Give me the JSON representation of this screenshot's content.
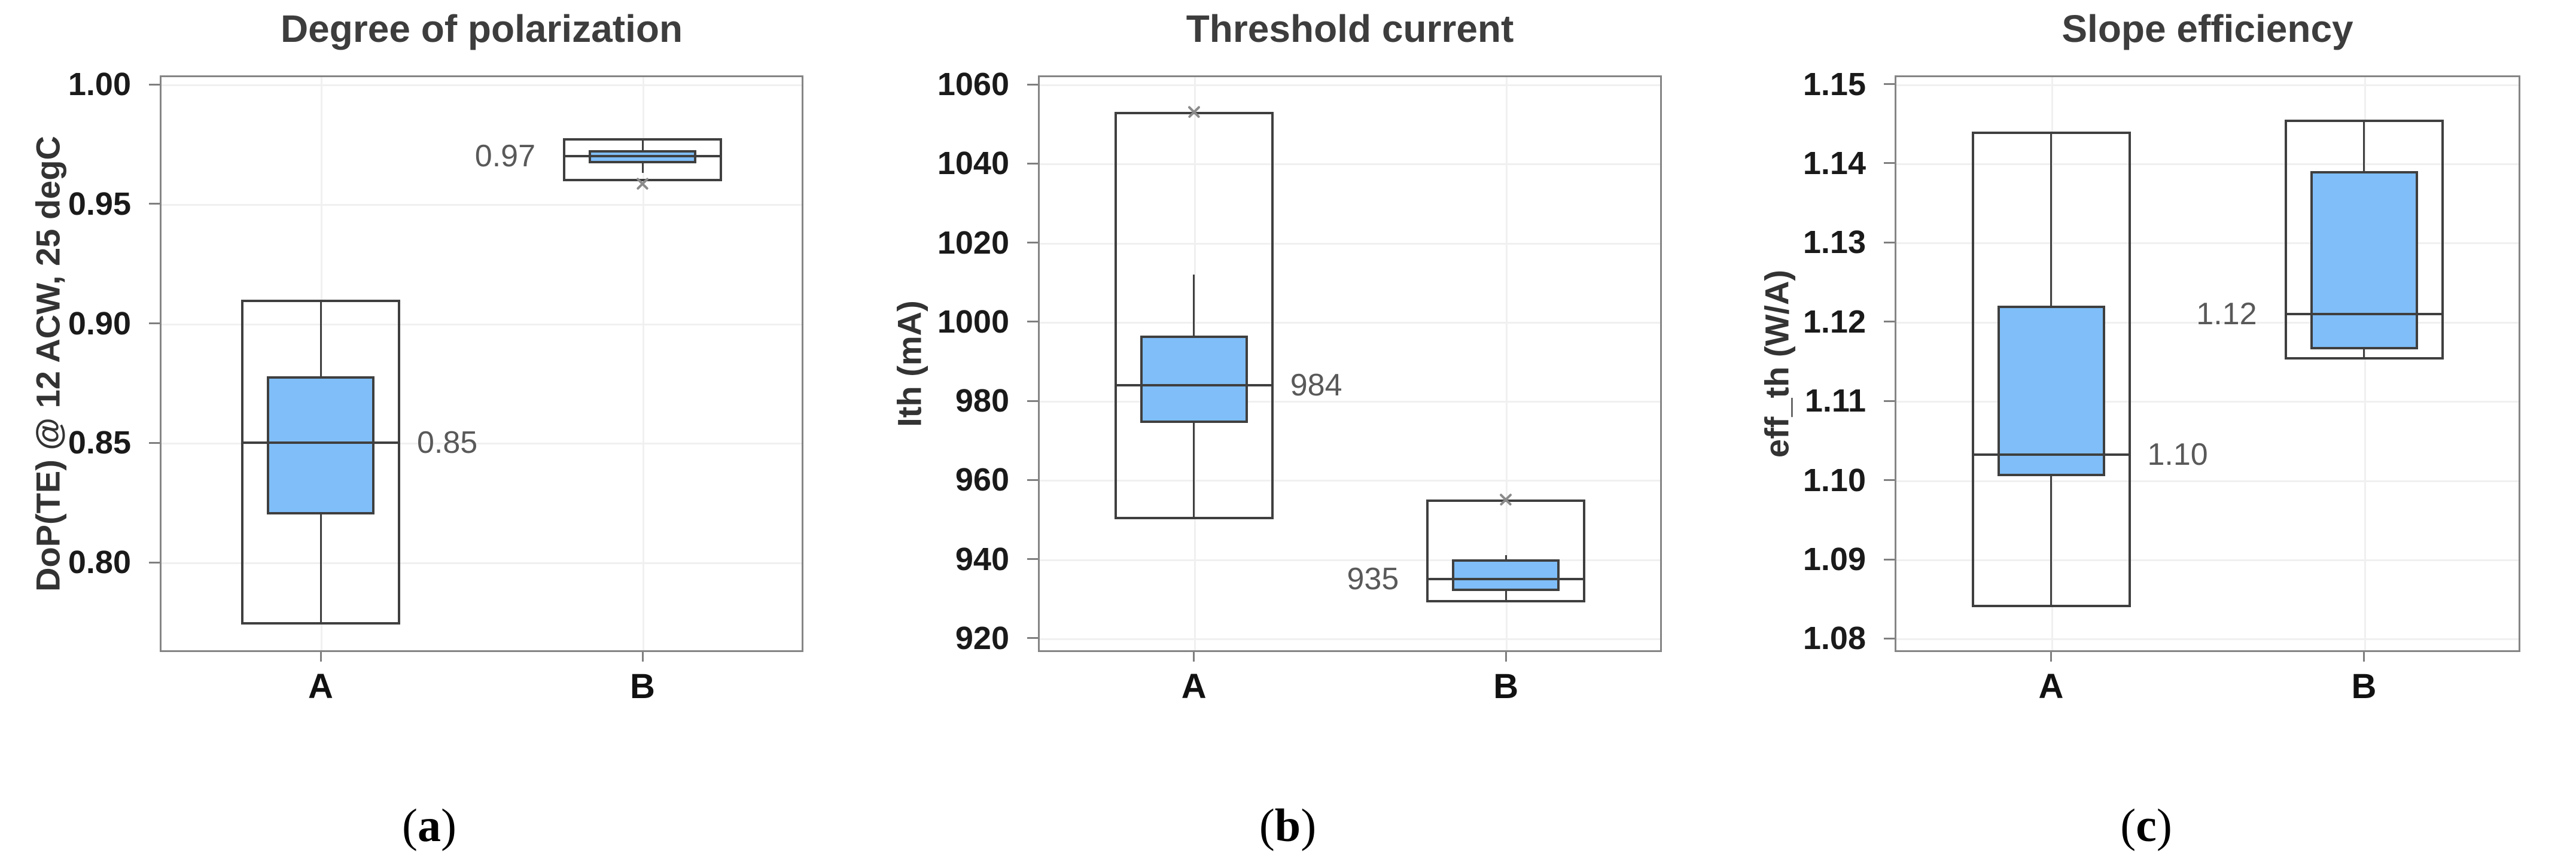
{
  "figure": {
    "background": "#ffffff",
    "captions": [
      {
        "open": "(",
        "letter": "a",
        "close": ")"
      },
      {
        "open": "(",
        "letter": "b",
        "close": ")"
      },
      {
        "open": "(",
        "letter": "c",
        "close": ")"
      }
    ]
  },
  "colors": {
    "box_fill": "#7fbef8",
    "box_border": "#3f3f3f",
    "median_line": "#3f3f3f",
    "whisker": "#3f3f3f",
    "plot_border": "#858585",
    "gridline": "#f0f0f0",
    "tick_mark": "#7f7f7f",
    "title_text": "#3d3d3d",
    "tick_text": "#1a1a1a",
    "median_label_text": "#595959",
    "outlier_marker": "#8a8a8a"
  },
  "icons": {
    "outlier_marker": "x-cross"
  },
  "chart_data": [
    {
      "type": "box",
      "title": "Degree of polarization",
      "ylabel": "DoP(TE) @ 12 ACW, 25 degC",
      "xlabel": "",
      "categories": [
        "A",
        "B"
      ],
      "ylim": [
        0.7625,
        1.0038
      ],
      "grid": true,
      "yticks": [
        {
          "value": 1.0,
          "label": "1.00"
        },
        {
          "value": 0.95,
          "label": "0.95"
        },
        {
          "value": 0.9,
          "label": "0.90"
        },
        {
          "value": 0.85,
          "label": "0.85"
        },
        {
          "value": 0.8,
          "label": "0.80"
        }
      ],
      "boxes": [
        {
          "category": "A",
          "whisker_range": [
            0.774,
            0.91
          ],
          "q1": 0.82,
          "q3": 0.878,
          "median": 0.85,
          "whisker_line": [
            0.774,
            0.91
          ],
          "outliers": [],
          "median_label": "0.85",
          "median_label_side": "right"
        },
        {
          "category": "B",
          "whisker_range": [
            0.9595,
            0.9775
          ],
          "q1": 0.967,
          "q3": 0.9725,
          "median": 0.97,
          "whisker_line": [
            0.963,
            0.9775
          ],
          "outliers": [
            0.9585
          ],
          "median_label": "0.97",
          "median_label_side": "left"
        }
      ]
    },
    {
      "type": "box",
      "title": "Threshold current",
      "ylabel": "Ith (mA)",
      "xlabel": "",
      "categories": [
        "A",
        "B"
      ],
      "ylim": [
        916.5,
        1062.3
      ],
      "grid": true,
      "yticks": [
        {
          "value": 1060,
          "label": "1060"
        },
        {
          "value": 1040,
          "label": "1040"
        },
        {
          "value": 1020,
          "label": "1020"
        },
        {
          "value": 1000,
          "label": "1000"
        },
        {
          "value": 980,
          "label": "980"
        },
        {
          "value": 960,
          "label": "960"
        },
        {
          "value": 940,
          "label": "940"
        },
        {
          "value": 920,
          "label": "920"
        }
      ],
      "boxes": [
        {
          "category": "A",
          "whisker_range": [
            950,
            1053
          ],
          "q1": 974.5,
          "q3": 996.5,
          "median": 984,
          "whisker_line": [
            950,
            1012
          ],
          "outliers": [
            1053
          ],
          "median_label": "984",
          "median_label_side": "right"
        },
        {
          "category": "B",
          "whisker_range": [
            929,
            955
          ],
          "q1": 932,
          "q3": 940,
          "median": 935,
          "whisker_line": [
            929,
            941
          ],
          "outliers": [
            955
          ],
          "median_label": "935",
          "median_label_side": "left"
        }
      ]
    },
    {
      "type": "box",
      "title": "Slope efficiency",
      "ylabel": "eff_th (W/A)",
      "xlabel": "",
      "categories": [
        "A",
        "B"
      ],
      "ylim": [
        1.0783,
        1.1511
      ],
      "grid": true,
      "yticks": [
        {
          "value": 1.15,
          "label": "1.15"
        },
        {
          "value": 1.14,
          "label": "1.14"
        },
        {
          "value": 1.13,
          "label": "1.13"
        },
        {
          "value": 1.12,
          "label": "1.12"
        },
        {
          "value": 1.11,
          "label": "1.11"
        },
        {
          "value": 1.1,
          "label": "1.10"
        },
        {
          "value": 1.09,
          "label": "1.09"
        },
        {
          "value": 1.08,
          "label": "1.08"
        }
      ],
      "boxes": [
        {
          "category": "A",
          "whisker_range": [
            1.084,
            1.144
          ],
          "q1": 1.1005,
          "q3": 1.122,
          "median": 1.1032,
          "whisker_line": [
            1.084,
            1.144
          ],
          "outliers": [],
          "median_label": "1.10",
          "median_label_side": "right"
        },
        {
          "category": "B",
          "whisker_range": [
            1.1152,
            1.1455
          ],
          "q1": 1.1165,
          "q3": 1.139,
          "median": 1.121,
          "whisker_line": [
            1.1152,
            1.1455
          ],
          "outliers": [],
          "median_label": "1.12",
          "median_label_side": "left"
        }
      ]
    }
  ]
}
